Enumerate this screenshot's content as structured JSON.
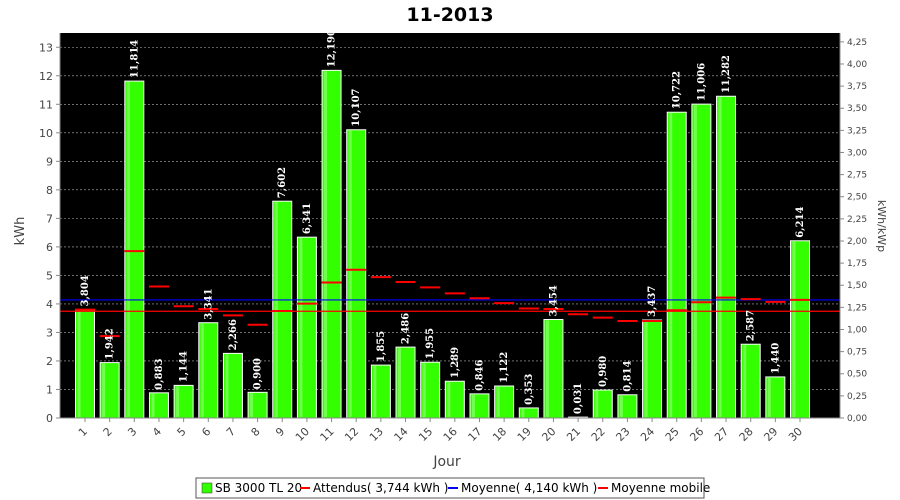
{
  "chart_data": {
    "type": "bar",
    "title": "11-2013",
    "xlabel": "Jour",
    "ylabel": "kWh",
    "y2label": "kWh/kWp",
    "ylim": [
      0,
      13.5
    ],
    "y2lim": [
      0,
      4.35
    ],
    "yticks": [
      0,
      1,
      2,
      3,
      4,
      5,
      6,
      7,
      8,
      9,
      10,
      11,
      12,
      13
    ],
    "y2ticks": [
      "0,00",
      "0,25",
      "0,50",
      "0,75",
      "1,00",
      "1,25",
      "1,50",
      "1,75",
      "2,00",
      "2,25",
      "2,50",
      "2,75",
      "3,00",
      "3,25",
      "3,50",
      "3,75",
      "4,00",
      "4,25"
    ],
    "categories": [
      "1",
      "2",
      "3",
      "4",
      "5",
      "6",
      "7",
      "8",
      "9",
      "10",
      "11",
      "12",
      "13",
      "14",
      "15",
      "16",
      "17",
      "18",
      "19",
      "20",
      "21",
      "22",
      "23",
      "24",
      "25",
      "26",
      "27",
      "28",
      "29",
      "30"
    ],
    "series": [
      {
        "name": "SB 3000 TL 20",
        "kind": "bar",
        "color": "#33ff00",
        "values": [
          3.804,
          1.942,
          11.814,
          0.883,
          1.144,
          3.341,
          2.266,
          0.9,
          7.602,
          6.341,
          12.19,
          10.107,
          1.855,
          2.486,
          1.955,
          1.289,
          0.846,
          1.122,
          0.353,
          3.454,
          0.031,
          0.98,
          0.814,
          3.437,
          10.722,
          11.006,
          11.282,
          2.587,
          1.44,
          6.214
        ],
        "labels": [
          "3,804",
          "1,942",
          "11,814",
          "0,883",
          "1,144",
          "3,341",
          "2,266",
          "0,900",
          "7,602",
          "6,341",
          "12,190",
          "10,107",
          "1,855",
          "2,486",
          "1,955",
          "1,289",
          "0,846",
          "1,122",
          "0,353",
          "3,454",
          "0,031",
          "0,980",
          "0,814",
          "3,437",
          "10,722",
          "11,006",
          "11,282",
          "2,587",
          "1,440",
          "6,214"
        ]
      },
      {
        "name": "Attendus( 3,744 kWh )",
        "kind": "constant-line",
        "color": "#ff0000",
        "value": 3.744
      },
      {
        "name": "Moyenne( 4,140 kWh )",
        "kind": "constant-line",
        "color": "#0000ff",
        "value": 4.14
      },
      {
        "name": "Moyenne mobile",
        "kind": "step-marker",
        "color": "#ff0000",
        "values": [
          3.8,
          2.87,
          5.85,
          4.61,
          3.92,
          3.82,
          3.6,
          3.27,
          3.75,
          4.01,
          4.75,
          5.2,
          4.94,
          4.77,
          4.58,
          4.37,
          4.2,
          4.03,
          3.84,
          3.82,
          3.64,
          3.52,
          3.4,
          3.4,
          3.78,
          4.06,
          4.22,
          4.17,
          4.07,
          4.14
        ]
      }
    ],
    "grid": true,
    "legend": "bottom"
  }
}
